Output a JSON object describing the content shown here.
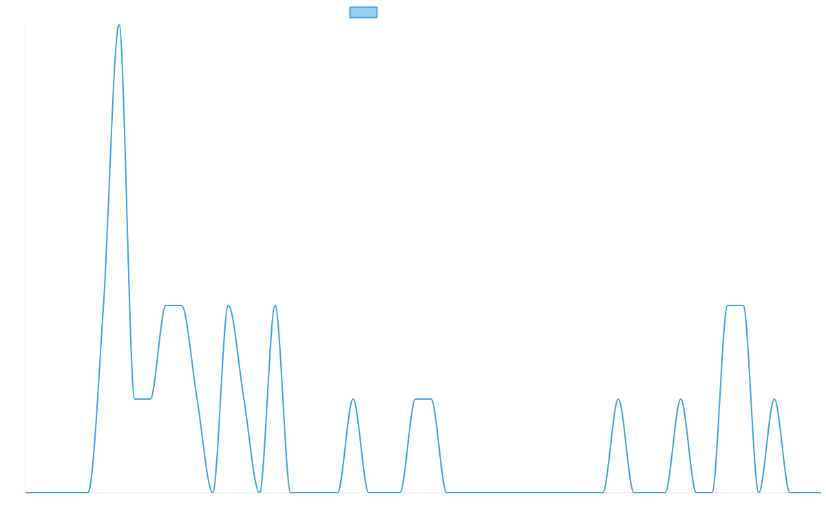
{
  "chart_data": {
    "type": "line",
    "series": [
      {
        "color": "#36a2eb",
        "fill": "#9ad0f5",
        "values": [
          0,
          0,
          0,
          0,
          0,
          2,
          5,
          1,
          1,
          2,
          2,
          1,
          0,
          2,
          1,
          0,
          2,
          0,
          0,
          0,
          0,
          1,
          0,
          0,
          0,
          1,
          1,
          0,
          0,
          0,
          0,
          0,
          0,
          0,
          0,
          0,
          0,
          0,
          1,
          0,
          0,
          0,
          1,
          0,
          0,
          2,
          2,
          0,
          1,
          0,
          0,
          0
        ]
      }
    ],
    "ylim": [
      0,
      5
    ]
  }
}
